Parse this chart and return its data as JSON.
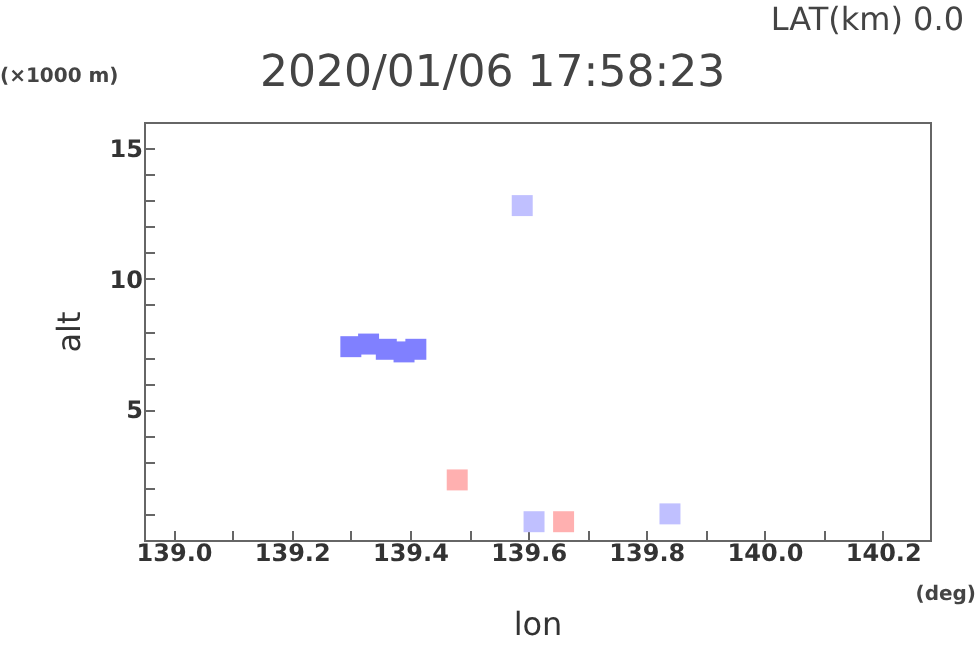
{
  "chart_data": {
    "type": "scatter",
    "title": "2020/01/06 17:58:23",
    "subtitle": "LAT(km) 0.0",
    "xlabel": "lon",
    "ylabel": "alt",
    "annotations": [
      "(×1000 m)",
      "(deg)"
    ],
    "marker": "square",
    "legend": false,
    "grid": false,
    "series": [
      {
        "color": "#8080ff",
        "x": [
          139.3,
          139.33,
          139.36,
          139.39,
          139.41
        ],
        "values": [
          7.4,
          7.5,
          7.3,
          7.2,
          7.3
        ]
      },
      {
        "color": "#c0c0ff",
        "x": [
          139.59,
          139.61,
          139.84
        ],
        "values": [
          12.8,
          0.7,
          1.0
        ]
      },
      {
        "color": "#ffb0b0",
        "x": [
          139.48,
          139.66
        ],
        "values": [
          2.3,
          0.7
        ]
      }
    ],
    "xlim": [
      138.95,
      140.28
    ],
    "ylim": [
      0,
      16
    ],
    "xticks": [
      {
        "value": 139,
        "label": "139.0"
      },
      {
        "value": 139.1,
        "label": null
      },
      {
        "value": 139.2,
        "label": "139.2"
      },
      {
        "value": 139.3,
        "label": null
      },
      {
        "value": 139.4,
        "label": "139.4"
      },
      {
        "value": 139.5,
        "label": null
      },
      {
        "value": 139.6,
        "label": "139.6"
      },
      {
        "value": 139.7,
        "label": null
      },
      {
        "value": 139.8,
        "label": "139.8"
      },
      {
        "value": 139.9,
        "label": null
      },
      {
        "value": 140,
        "label": "140.0"
      },
      {
        "value": 140.1,
        "label": null
      },
      {
        "value": 140.2,
        "label": "140.2"
      }
    ],
    "yticks": [
      {
        "value": 1,
        "label": null
      },
      {
        "value": 2,
        "label": null
      },
      {
        "value": 3,
        "label": null
      },
      {
        "value": 4,
        "label": null
      },
      5,
      {
        "value": 6,
        "label": null
      },
      {
        "value": 7,
        "label": null
      },
      {
        "value": 8,
        "label": null
      },
      {
        "value": 9,
        "label": null
      },
      10,
      {
        "value": 11,
        "label": null
      },
      {
        "value": 12,
        "label": null
      },
      {
        "value": 13,
        "label": null
      },
      {
        "value": 14,
        "label": null
      },
      15
    ]
  }
}
